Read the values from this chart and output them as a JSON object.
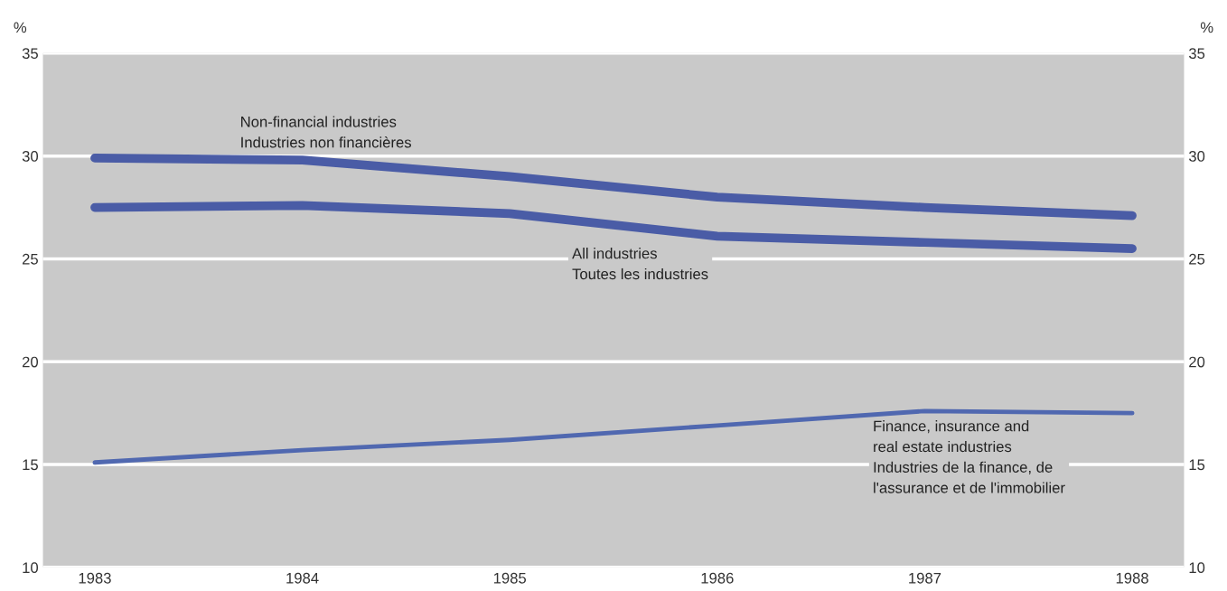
{
  "chart_data": {
    "type": "line",
    "x": [
      1983,
      1984,
      1985,
      1986,
      1987,
      1988
    ],
    "series": [
      {
        "name": "Non-financial industries\nIndustries non financières",
        "color": "#4a5ca6",
        "values": [
          29.9,
          29.8,
          29.0,
          28.0,
          27.5,
          27.1
        ]
      },
      {
        "name": "All industries\nToutes les industries",
        "color": "#4a5ca6",
        "values": [
          27.5,
          27.6,
          27.2,
          26.1,
          25.8,
          25.5
        ]
      },
      {
        "name": "Finance, insurance and\nreal estate industries\nIndustries de la finance, de\nl'assurance et de l'immobilier",
        "color": "#5068b0",
        "values": [
          15.1,
          15.7,
          16.2,
          16.9,
          17.6,
          17.5
        ]
      }
    ],
    "xlim": [
      1982.75,
      1988.25
    ],
    "xticks": [
      1983,
      1984,
      1985,
      1986,
      1987,
      1988
    ],
    "ylim": [
      10,
      35
    ],
    "yticks": [
      10,
      15,
      20,
      25,
      30,
      35
    ],
    "y2lim": [
      10,
      35
    ],
    "y2ticks": [
      10,
      15,
      20,
      25,
      30,
      35
    ],
    "ylabel": "%",
    "y2label": "%",
    "grid": "y",
    "legend": false,
    "marker": "none",
    "line_style": "solid"
  }
}
